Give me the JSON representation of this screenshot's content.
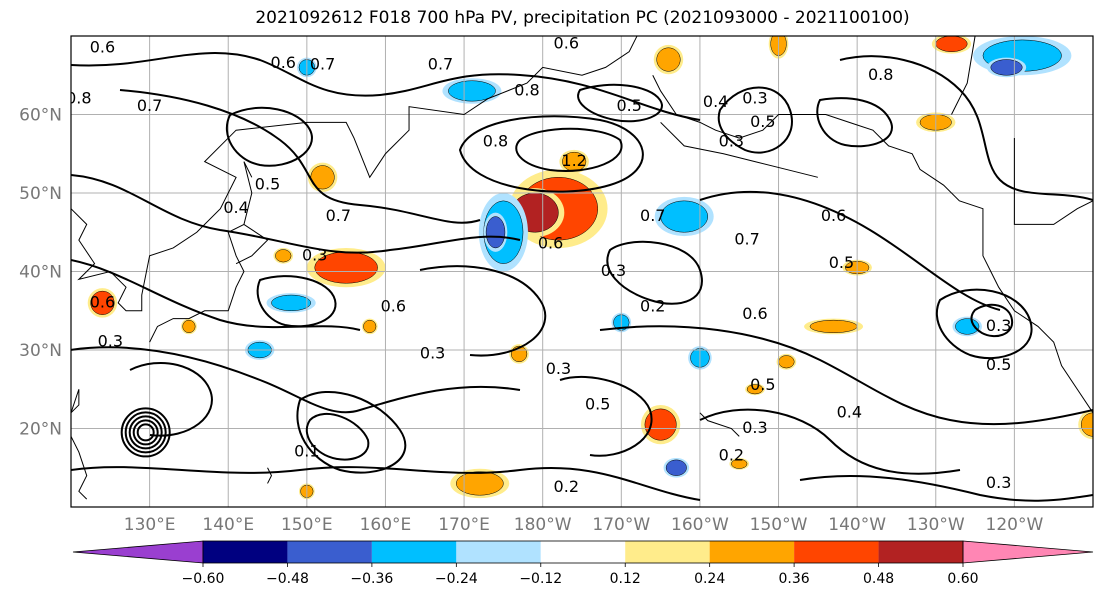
{
  "title": "2021092612 F018 700 hPa PV, precipitation PC (2021093000 - 2021100100)",
  "map": {
    "lat_labels": [
      "60°N",
      "50°N",
      "40°N",
      "30°N",
      "20°N"
    ],
    "lon_labels": [
      "130°E",
      "140°E",
      "150°E",
      "160°E",
      "170°E",
      "180°W",
      "170°W",
      "160°W",
      "150°W",
      "140°W",
      "130°W",
      "120°W"
    ],
    "lon_range": [
      120,
      250
    ],
    "lat_range": [
      10,
      70
    ]
  },
  "pv_contour_labels": [
    {
      "text": "0.6",
      "lon": 124,
      "lat": 68.5
    },
    {
      "text": "0.6",
      "lon": 147,
      "lat": 66.5
    },
    {
      "text": "0.7",
      "lon": 152,
      "lat": 66.3
    },
    {
      "text": "0.7",
      "lon": 167,
      "lat": 66.3
    },
    {
      "text": "0.6",
      "lon": 183,
      "lat": 69
    },
    {
      "text": "0.8",
      "lon": 121,
      "lat": 62
    },
    {
      "text": "0.7",
      "lon": 130,
      "lat": 61
    },
    {
      "text": "0.8",
      "lon": 178,
      "lat": 63
    },
    {
      "text": "0.5",
      "lon": 191,
      "lat": 61
    },
    {
      "text": "0.8",
      "lon": 174,
      "lat": 56.5
    },
    {
      "text": "1.2",
      "lon": 184,
      "lat": 54
    },
    {
      "text": "0.4",
      "lon": 202,
      "lat": 61.5
    },
    {
      "text": "0.3",
      "lon": 207,
      "lat": 62
    },
    {
      "text": "0.3",
      "lon": 204,
      "lat": 56.5
    },
    {
      "text": "0.5",
      "lon": 208,
      "lat": 59
    },
    {
      "text": "0.8",
      "lon": 223,
      "lat": 65
    },
    {
      "text": "0.5",
      "lon": 145,
      "lat": 51
    },
    {
      "text": "0.4",
      "lon": 141,
      "lat": 48
    },
    {
      "text": "0.7",
      "lon": 154,
      "lat": 47
    },
    {
      "text": "0.7",
      "lon": 194,
      "lat": 47
    },
    {
      "text": "0.6",
      "lon": 181,
      "lat": 43.5
    },
    {
      "text": "0.3",
      "lon": 151,
      "lat": 42
    },
    {
      "text": "0.6",
      "lon": 217,
      "lat": 47
    },
    {
      "text": "0.7",
      "lon": 206,
      "lat": 44
    },
    {
      "text": "0.5",
      "lon": 218,
      "lat": 41
    },
    {
      "text": "0.6",
      "lon": 161,
      "lat": 35.5
    },
    {
      "text": "0.3",
      "lon": 189,
      "lat": 40
    },
    {
      "text": "0.2",
      "lon": 194,
      "lat": 35.5
    },
    {
      "text": "0.6",
      "lon": 207,
      "lat": 34.5
    },
    {
      "text": "0.3",
      "lon": 166,
      "lat": 29.5
    },
    {
      "text": "0.3",
      "lon": 182,
      "lat": 27.5
    },
    {
      "text": "0.5",
      "lon": 187,
      "lat": 23
    },
    {
      "text": "0.5",
      "lon": 208,
      "lat": 25.5
    },
    {
      "text": "0.3",
      "lon": 207,
      "lat": 20
    },
    {
      "text": "0.4",
      "lon": 219,
      "lat": 22
    },
    {
      "text": "0.2",
      "lon": 204,
      "lat": 16.5
    },
    {
      "text": "0.2",
      "lon": 183,
      "lat": 12.5
    },
    {
      "text": "0.1",
      "lon": 150,
      "lat": 17
    },
    {
      "text": "0.3",
      "lon": 238,
      "lat": 13
    },
    {
      "text": "0.3",
      "lon": 238,
      "lat": 33
    },
    {
      "text": "0.5",
      "lon": 238,
      "lat": 28
    },
    {
      "text": "0.6",
      "lon": 124,
      "lat": 36
    },
    {
      "text": "0.3",
      "lon": 125,
      "lat": 31
    }
  ],
  "precip_anomalies": [
    {
      "lon": 182,
      "lat": 48,
      "rx": 5,
      "ry": 4,
      "val": 0.42
    },
    {
      "lon": 179,
      "lat": 47.5,
      "rx": 3,
      "ry": 2.5,
      "val": 0.55
    },
    {
      "lon": 184,
      "lat": 54,
      "rx": 1.5,
      "ry": 1.2,
      "val": 0.3
    },
    {
      "lon": 155,
      "lat": 40.5,
      "rx": 4,
      "ry": 2,
      "val": 0.42
    },
    {
      "lon": 152,
      "lat": 52,
      "rx": 1.5,
      "ry": 1.5,
      "val": 0.3
    },
    {
      "lon": 124,
      "lat": 36,
      "rx": 1.5,
      "ry": 1.5,
      "val": 0.42
    },
    {
      "lon": 175,
      "lat": 45,
      "rx": 2.5,
      "ry": 4,
      "val": -0.33
    },
    {
      "lon": 174,
      "lat": 45,
      "rx": 1.2,
      "ry": 2,
      "val": -0.42
    },
    {
      "lon": 198,
      "lat": 47,
      "rx": 3,
      "ry": 2,
      "val": -0.33
    },
    {
      "lon": 171,
      "lat": 63,
      "rx": 3,
      "ry": 1.3,
      "val": -0.3
    },
    {
      "lon": 148,
      "lat": 36,
      "rx": 2.5,
      "ry": 1,
      "val": -0.3
    },
    {
      "lon": 144,
      "lat": 30,
      "rx": 1.5,
      "ry": 1,
      "val": -0.3
    },
    {
      "lon": 190,
      "lat": 33.5,
      "rx": 1,
      "ry": 1,
      "val": -0.3
    },
    {
      "lon": 197,
      "lat": 15,
      "rx": 1.3,
      "ry": 1,
      "val": -0.36
    },
    {
      "lon": 195,
      "lat": 20.5,
      "rx": 2,
      "ry": 2,
      "val": 0.42
    },
    {
      "lon": 172,
      "lat": 13,
      "rx": 3,
      "ry": 1.5,
      "val": 0.3
    },
    {
      "lon": 217,
      "lat": 33,
      "rx": 3,
      "ry": 0.8,
      "val": 0.3
    },
    {
      "lon": 220,
      "lat": 40.5,
      "rx": 1.5,
      "ry": 0.8,
      "val": 0.3
    },
    {
      "lon": 147,
      "lat": 42,
      "rx": 1,
      "ry": 0.8,
      "val": 0.3
    },
    {
      "lon": 196,
      "lat": 67,
      "rx": 1.5,
      "ry": 1.5,
      "val": 0.3
    },
    {
      "lon": 210,
      "lat": 69,
      "rx": 1,
      "ry": 1.5,
      "val": 0.3
    },
    {
      "lon": 232,
      "lat": 69,
      "rx": 2,
      "ry": 1,
      "val": 0.42
    },
    {
      "lon": 241,
      "lat": 67.5,
      "rx": 5,
      "ry": 2,
      "val": -0.33
    },
    {
      "lon": 239,
      "lat": 66,
      "rx": 2,
      "ry": 1,
      "val": -0.45
    },
    {
      "lon": 230,
      "lat": 59,
      "rx": 2,
      "ry": 1,
      "val": 0.3
    },
    {
      "lon": 177,
      "lat": 29.5,
      "rx": 1,
      "ry": 1,
      "val": 0.3
    },
    {
      "lon": 211,
      "lat": 28.5,
      "rx": 1,
      "ry": 0.8,
      "val": 0.3
    },
    {
      "lon": 207,
      "lat": 25,
      "rx": 1,
      "ry": 0.6,
      "val": 0.3
    },
    {
      "lon": 200,
      "lat": 29,
      "rx": 1.2,
      "ry": 1.2,
      "val": -0.3
    },
    {
      "lon": 135,
      "lat": 33,
      "rx": 0.8,
      "ry": 0.8,
      "val": 0.3
    },
    {
      "lon": 158,
      "lat": 33,
      "rx": 0.8,
      "ry": 0.8,
      "val": 0.3
    },
    {
      "lon": 250,
      "lat": 20.5,
      "rx": 1.5,
      "ry": 1.5,
      "val": 0.3
    },
    {
      "lon": 234,
      "lat": 33,
      "rx": 1.5,
      "ry": 1,
      "val": -0.3
    },
    {
      "lon": 150,
      "lat": 66,
      "rx": 1,
      "ry": 1,
      "val": -0.3
    },
    {
      "lon": 150,
      "lat": 12,
      "rx": 0.8,
      "ry": 0.8,
      "val": 0.3
    },
    {
      "lon": 205,
      "lat": 15.5,
      "rx": 1,
      "ry": 0.6,
      "val": 0.3
    }
  ],
  "colorbar": {
    "colors": [
      "#9a3fd0",
      "#000080",
      "#3a5ecf",
      "#00bfff",
      "#b0e2ff",
      "#ffffff",
      "#ffec8b",
      "#ffa500",
      "#ff4500",
      "#b22222",
      "#ff86b4"
    ],
    "ticks": [
      "−0.60",
      "−0.48",
      "−0.36",
      "−0.24",
      "−0.12",
      "0.12",
      "0.24",
      "0.36",
      "0.48",
      "0.60"
    ]
  }
}
